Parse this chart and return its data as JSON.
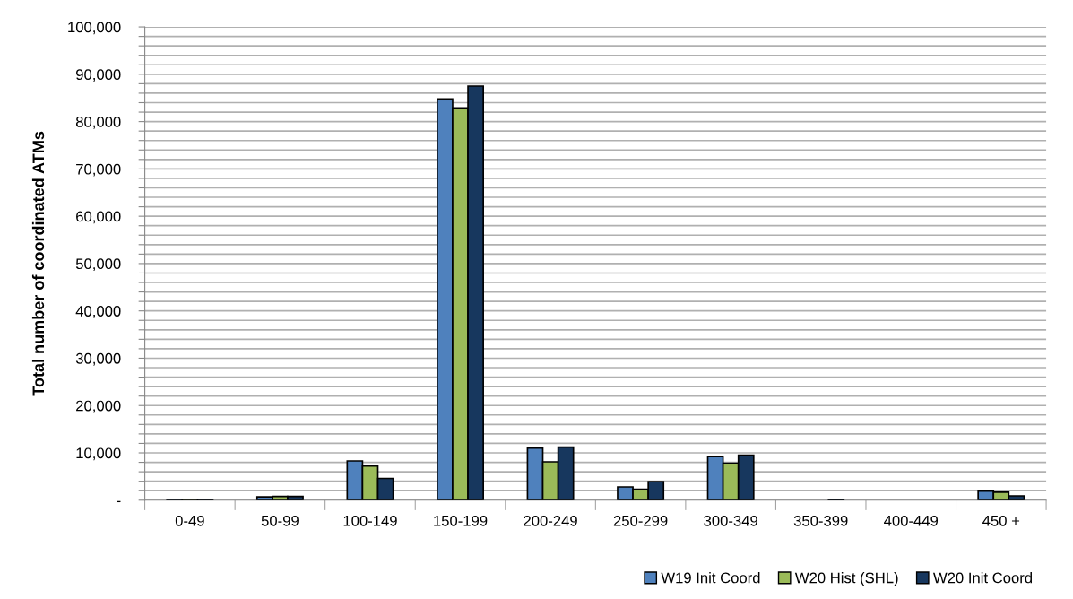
{
  "chart_data": {
    "type": "bar",
    "ylabel": "Total number of coordinated ATMs",
    "categories": [
      "0-49",
      "50-99",
      "100-149",
      "150-199",
      "200-249",
      "250-299",
      "300-349",
      "350-399",
      "400-449",
      "450 +"
    ],
    "series": [
      {
        "name": "W19 Init Coord",
        "color": "#4f81bd",
        "values": [
          100,
          700,
          8300,
          84800,
          11000,
          2800,
          9200,
          0,
          0,
          1900
        ]
      },
      {
        "name": "W20 Hist (SHL)",
        "color": "#9bbb59",
        "values": [
          100,
          800,
          7200,
          82900,
          8100,
          2300,
          7800,
          0,
          0,
          1700
        ]
      },
      {
        "name": "W20 Init Coord",
        "color": "#17375e",
        "values": [
          100,
          800,
          4600,
          87500,
          11200,
          3900,
          9500,
          200,
          0,
          900
        ]
      }
    ],
    "ylim": [
      0,
      100000
    ],
    "yticks": [
      {
        "value": 0,
        "label": "-"
      },
      {
        "value": 2000,
        "label": null
      },
      {
        "value": 4000,
        "label": null
      },
      {
        "value": 6000,
        "label": null
      },
      {
        "value": 8000,
        "label": null
      },
      {
        "value": 10000,
        "label": "10,000"
      },
      {
        "value": 12000,
        "label": null
      },
      {
        "value": 14000,
        "label": null
      },
      {
        "value": 16000,
        "label": null
      },
      {
        "value": 18000,
        "label": null
      },
      {
        "value": 20000,
        "label": "20,000"
      },
      {
        "value": 22000,
        "label": null
      },
      {
        "value": 24000,
        "label": null
      },
      {
        "value": 26000,
        "label": null
      },
      {
        "value": 28000,
        "label": null
      },
      {
        "value": 30000,
        "label": "30,000"
      },
      {
        "value": 32000,
        "label": null
      },
      {
        "value": 34000,
        "label": null
      },
      {
        "value": 36000,
        "label": null
      },
      {
        "value": 38000,
        "label": null
      },
      {
        "value": 40000,
        "label": "40,000"
      },
      {
        "value": 42000,
        "label": null
      },
      {
        "value": 44000,
        "label": null
      },
      {
        "value": 46000,
        "label": null
      },
      {
        "value": 48000,
        "label": null
      },
      {
        "value": 50000,
        "label": "50,000"
      },
      {
        "value": 52000,
        "label": null
      },
      {
        "value": 54000,
        "label": null
      },
      {
        "value": 56000,
        "label": null
      },
      {
        "value": 58000,
        "label": null
      },
      {
        "value": 60000,
        "label": "60,000"
      },
      {
        "value": 62000,
        "label": null
      },
      {
        "value": 64000,
        "label": null
      },
      {
        "value": 66000,
        "label": null
      },
      {
        "value": 68000,
        "label": null
      },
      {
        "value": 70000,
        "label": "70,000"
      },
      {
        "value": 72000,
        "label": null
      },
      {
        "value": 74000,
        "label": null
      },
      {
        "value": 76000,
        "label": null
      },
      {
        "value": 78000,
        "label": null
      },
      {
        "value": 80000,
        "label": "80,000"
      },
      {
        "value": 82000,
        "label": null
      },
      {
        "value": 84000,
        "label": null
      },
      {
        "value": 86000,
        "label": null
      },
      {
        "value": 88000,
        "label": null
      },
      {
        "value": 90000,
        "label": "90,000"
      },
      {
        "value": 92000,
        "label": null
      },
      {
        "value": 94000,
        "label": null
      },
      {
        "value": 96000,
        "label": null
      },
      {
        "value": 98000,
        "label": null
      },
      {
        "value": 100000,
        "label": "100,000"
      }
    ],
    "grid": "y",
    "legend": "bottom right"
  }
}
